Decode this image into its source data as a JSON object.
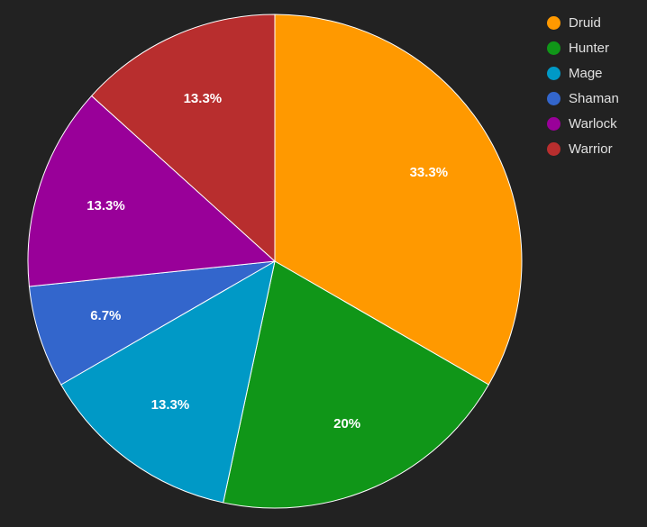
{
  "chart_data": {
    "type": "pie",
    "title": "",
    "legend_position": "top-right",
    "slices": [
      {
        "name": "Druid",
        "value": 33.3,
        "label": "33.3%",
        "color": "#FF9900"
      },
      {
        "name": "Hunter",
        "value": 20,
        "label": "20%",
        "color": "#109618"
      },
      {
        "name": "Mage",
        "value": 13.3,
        "label": "13.3%",
        "color": "#0099C6"
      },
      {
        "name": "Shaman",
        "value": 6.7,
        "label": "6.7%",
        "color": "#3366CC"
      },
      {
        "name": "Warlock",
        "value": 13.3,
        "label": "13.3%",
        "color": "#990099"
      },
      {
        "name": "Warrior",
        "value": 13.3,
        "label": "13.3%",
        "color": "#B82E2E"
      }
    ]
  }
}
